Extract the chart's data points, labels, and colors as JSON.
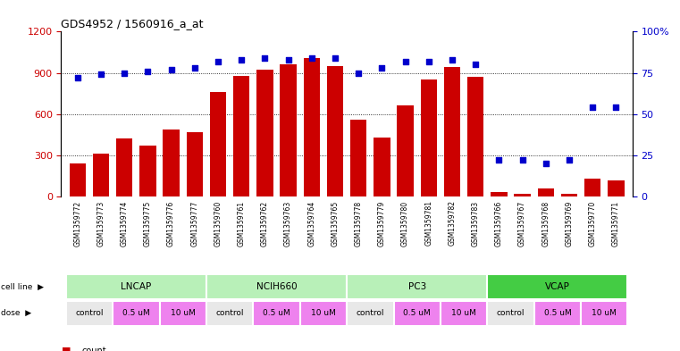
{
  "title": "GDS4952 / 1560916_a_at",
  "samples": [
    "GSM1359772",
    "GSM1359773",
    "GSM1359774",
    "GSM1359775",
    "GSM1359776",
    "GSM1359777",
    "GSM1359760",
    "GSM1359761",
    "GSM1359762",
    "GSM1359763",
    "GSM1359764",
    "GSM1359765",
    "GSM1359778",
    "GSM1359779",
    "GSM1359780",
    "GSM1359781",
    "GSM1359782",
    "GSM1359783",
    "GSM1359766",
    "GSM1359767",
    "GSM1359768",
    "GSM1359769",
    "GSM1359770",
    "GSM1359771"
  ],
  "counts": [
    240,
    310,
    420,
    370,
    490,
    470,
    760,
    880,
    920,
    960,
    1010,
    950,
    560,
    430,
    660,
    850,
    940,
    870,
    30,
    20,
    60,
    20,
    130,
    120
  ],
  "percentiles": [
    72,
    74,
    75,
    76,
    77,
    78,
    82,
    83,
    84,
    83,
    84,
    84,
    75,
    78,
    82,
    82,
    83,
    80,
    22,
    22,
    20,
    22,
    54,
    54
  ],
  "cell_line_groups": [
    {
      "label": "LNCAP",
      "start": 0,
      "end": 5,
      "color": "#b8f0b8"
    },
    {
      "label": "NCIH660",
      "start": 6,
      "end": 11,
      "color": "#b8f0b8"
    },
    {
      "label": "PC3",
      "start": 12,
      "end": 17,
      "color": "#b8f0b8"
    },
    {
      "label": "VCAP",
      "start": 18,
      "end": 23,
      "color": "#44cc44"
    }
  ],
  "dose_groups": [
    {
      "label": "control",
      "start": 0,
      "end": 1,
      "color": "#e8e8e8"
    },
    {
      "label": "0.5 uM",
      "start": 2,
      "end": 3,
      "color": "#ee82ee"
    },
    {
      "label": "10 uM",
      "start": 4,
      "end": 5,
      "color": "#ee82ee"
    },
    {
      "label": "control",
      "start": 6,
      "end": 7,
      "color": "#e8e8e8"
    },
    {
      "label": "0.5 uM",
      "start": 8,
      "end": 9,
      "color": "#ee82ee"
    },
    {
      "label": "10 uM",
      "start": 10,
      "end": 11,
      "color": "#ee82ee"
    },
    {
      "label": "control",
      "start": 12,
      "end": 13,
      "color": "#e8e8e8"
    },
    {
      "label": "0.5 uM",
      "start": 14,
      "end": 15,
      "color": "#ee82ee"
    },
    {
      "label": "10 uM",
      "start": 16,
      "end": 17,
      "color": "#ee82ee"
    },
    {
      "label": "control",
      "start": 18,
      "end": 19,
      "color": "#e8e8e8"
    },
    {
      "label": "0.5 uM",
      "start": 20,
      "end": 21,
      "color": "#ee82ee"
    },
    {
      "label": "10 uM",
      "start": 22,
      "end": 23,
      "color": "#ee82ee"
    }
  ],
  "bar_color": "#cc0000",
  "dot_color": "#0000cc",
  "ylim_left": [
    0,
    1200
  ],
  "ylim_right": [
    0,
    100
  ],
  "yticks_left": [
    0,
    300,
    600,
    900,
    1200
  ],
  "yticks_right": [
    0,
    25,
    50,
    75,
    100
  ]
}
